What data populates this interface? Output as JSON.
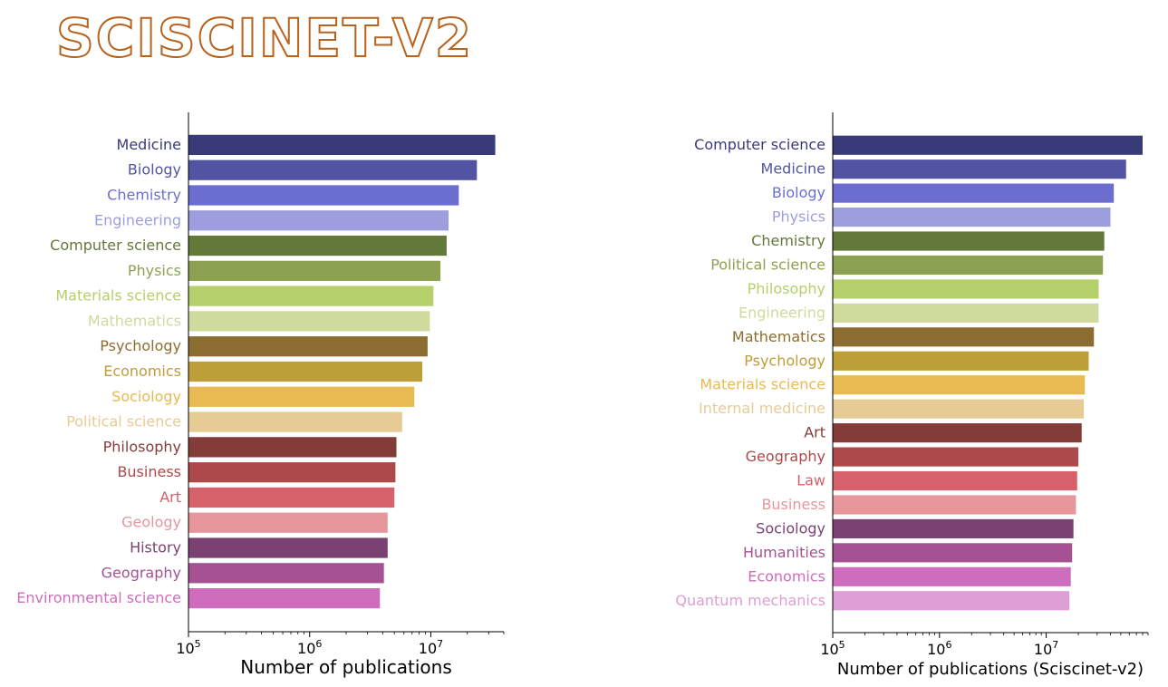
{
  "logo": {
    "text": "SCISCINET-V2",
    "color": "#b8621c"
  },
  "chart_data": [
    {
      "type": "bar",
      "orientation": "horizontal",
      "xscale": "log",
      "xlabel": "Number of publications",
      "xlim": [
        100000,
        40000000
      ],
      "xticks": [
        {
          "value": 100000,
          "base": "10",
          "exp": "5"
        },
        {
          "value": 1000000,
          "base": "10",
          "exp": "6"
        },
        {
          "value": 10000000,
          "base": "10",
          "exp": "7"
        }
      ],
      "grid": false,
      "categories": [
        "Medicine",
        "Biology",
        "Chemistry",
        "Engineering",
        "Computer science",
        "Physics",
        "Materials science",
        "Mathematics",
        "Psychology",
        "Economics",
        "Sociology",
        "Political science",
        "Philosophy",
        "Business",
        "Art",
        "Geology",
        "History",
        "Geography",
        "Environmental science"
      ],
      "values": [
        34000000,
        24000000,
        17000000,
        14000000,
        13500000,
        12000000,
        10500000,
        9800000,
        9400000,
        8500000,
        7300000,
        5800000,
        5200000,
        5100000,
        5000000,
        4400000,
        4400000,
        4100000,
        3800000
      ],
      "colors": [
        "#393b79",
        "#5254a3",
        "#6b6ecf",
        "#9c9ede",
        "#637939",
        "#8ca252",
        "#b5cf6b",
        "#cedb9c",
        "#8c6d31",
        "#bd9e39",
        "#e7ba52",
        "#e7cb94",
        "#843c39",
        "#ad494a",
        "#d6616b",
        "#e7969c",
        "#7b4173",
        "#a55194",
        "#ce6dbd"
      ]
    },
    {
      "type": "bar",
      "orientation": "horizontal",
      "xscale": "log",
      "xlabel": "Number of publications (Sciscinet-v2)",
      "xlim": [
        100000,
        90000000
      ],
      "xticks": [
        {
          "value": 100000,
          "base": "10",
          "exp": "5"
        },
        {
          "value": 1000000,
          "base": "10",
          "exp": "6"
        },
        {
          "value": 10000000,
          "base": "10",
          "exp": "7"
        }
      ],
      "grid": false,
      "categories": [
        "Computer science",
        "Medicine",
        "Biology",
        "Physics",
        "Chemistry",
        "Political science",
        "Philosophy",
        "Engineering",
        "Mathematics",
        "Psychology",
        "Materials science",
        "Internal medicine",
        "Art",
        "Geography",
        "Law",
        "Business",
        "Sociology",
        "Humanities",
        "Economics",
        "Quantum mechanics"
      ],
      "values": [
        80000000,
        56000000,
        43000000,
        40000000,
        35000000,
        34000000,
        31000000,
        31000000,
        28000000,
        25000000,
        23000000,
        22500000,
        21500000,
        20000000,
        19500000,
        19000000,
        18000000,
        17500000,
        17000000,
        16500000
      ],
      "colors": [
        "#393b79",
        "#5254a3",
        "#6b6ecf",
        "#9c9ede",
        "#637939",
        "#8ca252",
        "#b5cf6b",
        "#cedb9c",
        "#8c6d31",
        "#bd9e39",
        "#e7ba52",
        "#e7cb94",
        "#843c39",
        "#ad494a",
        "#d6616b",
        "#e7969c",
        "#7b4173",
        "#a55194",
        "#ce6dbd",
        "#de9ed6"
      ]
    }
  ]
}
